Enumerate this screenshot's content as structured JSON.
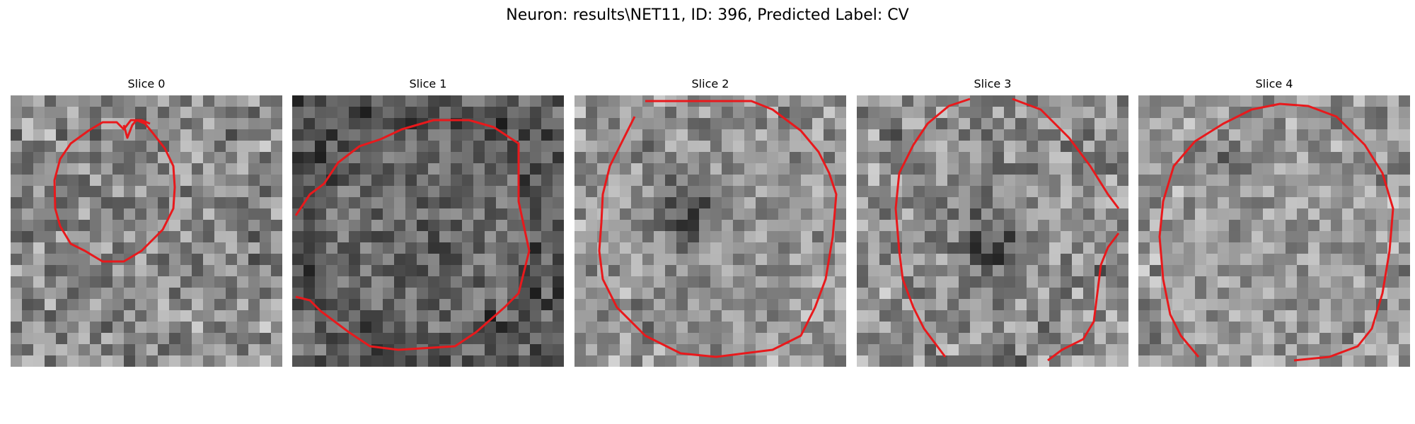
{
  "figure": {
    "title": "Neuron: results\\NET11, ID: 396, Predicted Label: CV"
  },
  "panels": [
    {
      "title": "Slice 0",
      "icon": "grayscale-microscopy-slice-with-red-contour"
    },
    {
      "title": "Slice 1",
      "icon": "grayscale-microscopy-slice-with-red-contour"
    },
    {
      "title": "Slice 2",
      "icon": "grayscale-microscopy-slice-with-red-contour"
    },
    {
      "title": "Slice 3",
      "icon": "grayscale-microscopy-slice-with-red-contour"
    },
    {
      "title": "Slice 4",
      "icon": "grayscale-microscopy-slice-with-red-contour"
    }
  ],
  "colors": {
    "contour": "#e8191c",
    "background": "#ffffff"
  }
}
